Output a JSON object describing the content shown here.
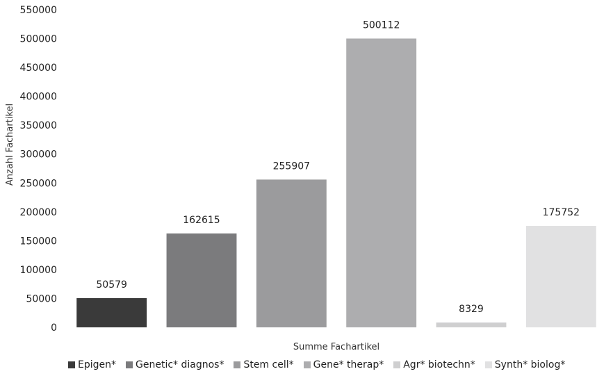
{
  "chart_data": {
    "type": "bar",
    "title": "",
    "xlabel": "Summe Fachartikel",
    "ylabel": "Anzahl Fachartikel",
    "ylim": [
      0,
      550000
    ],
    "yticks": [
      "0",
      "50000",
      "100000",
      "150000",
      "200000",
      "250000",
      "300000",
      "350000",
      "400000",
      "450000",
      "500000",
      "550000"
    ],
    "categories": [
      "Epigen*",
      "Genetic* diagnos*",
      "Stem cell*",
      "Gene* therap*",
      "Agr* biotechn*",
      "Synth* biolog*"
    ],
    "values": [
      50579,
      162615,
      255907,
      500112,
      8329,
      175752
    ],
    "data_labels": [
      "50579",
      "162615",
      "255907",
      "500112",
      "8329",
      "175752"
    ],
    "colors": [
      "#3a3a3a",
      "#7b7b7d",
      "#9b9b9d",
      "#adadaf",
      "#cfcfd0",
      "#e1e1e2"
    ],
    "grid": false,
    "legend_position": "bottom"
  }
}
